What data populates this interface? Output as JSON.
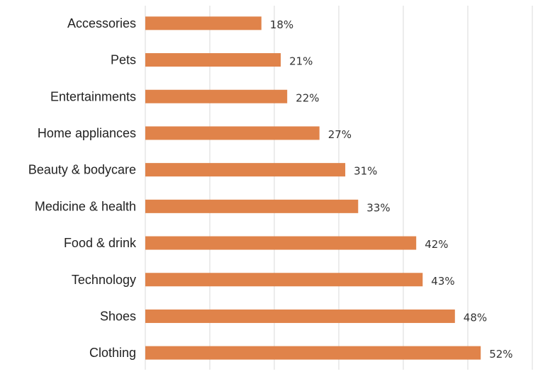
{
  "chart_data": {
    "type": "bar",
    "orientation": "horizontal",
    "categories": [
      "Accessories",
      "Pets",
      "Entertainments",
      "Home appliances",
      "Beauty & bodycare",
      "Medicine & health",
      "Food & drink",
      "Technology",
      "Shoes",
      "Clothing"
    ],
    "values": [
      18,
      21,
      22,
      27,
      31,
      33,
      42,
      43,
      48,
      52
    ],
    "data_labels": [
      "18%",
      "21%",
      "22%",
      "27%",
      "31%",
      "33%",
      "42%",
      "43%",
      "48%",
      "52%"
    ],
    "xlim": [
      0,
      60
    ],
    "grid": true,
    "bar_color": "#E0834A",
    "grid_color": "#D9D9D9"
  }
}
